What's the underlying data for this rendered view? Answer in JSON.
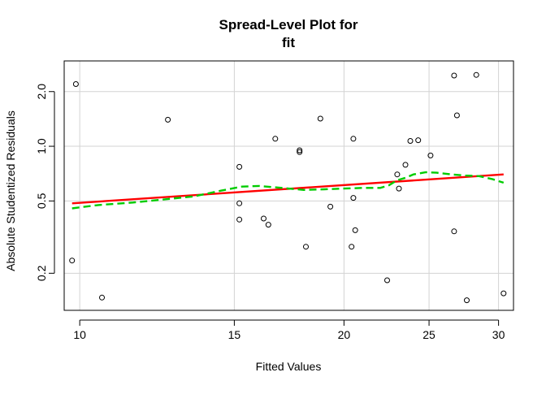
{
  "chart_data": {
    "type": "scatter",
    "title_lines": [
      "Spread-Level Plot for",
      "fit"
    ],
    "xlabel": "Fitted Values",
    "ylabel": "Absolute Studentized Residuals",
    "x_scale": "log",
    "y_scale": "log",
    "xlim": [
      9.6,
      31.2
    ],
    "ylim": [
      0.125,
      2.95
    ],
    "x_ticks": [
      10,
      15,
      20,
      25,
      30
    ],
    "x_tick_labels": [
      "10",
      "15",
      "20",
      "25",
      "30"
    ],
    "y_ticks": [
      0.2,
      0.5,
      1.0,
      2.0
    ],
    "y_tick_labels": [
      "0.2",
      "0.5",
      "1.0",
      "2.0"
    ],
    "grid": true,
    "points": [
      {
        "x": 9.8,
        "y": 0.235
      },
      {
        "x": 9.9,
        "y": 2.2
      },
      {
        "x": 10.6,
        "y": 0.147
      },
      {
        "x": 12.6,
        "y": 1.4
      },
      {
        "x": 15.2,
        "y": 0.77
      },
      {
        "x": 15.2,
        "y": 0.485
      },
      {
        "x": 15.2,
        "y": 0.395
      },
      {
        "x": 16.2,
        "y": 0.4
      },
      {
        "x": 16.4,
        "y": 0.37
      },
      {
        "x": 16.7,
        "y": 1.1
      },
      {
        "x": 17.8,
        "y": 0.93
      },
      {
        "x": 17.8,
        "y": 0.95
      },
      {
        "x": 18.1,
        "y": 0.28
      },
      {
        "x": 18.8,
        "y": 1.42
      },
      {
        "x": 19.3,
        "y": 0.465
      },
      {
        "x": 20.4,
        "y": 0.28
      },
      {
        "x": 20.5,
        "y": 0.52
      },
      {
        "x": 20.5,
        "y": 1.1
      },
      {
        "x": 20.6,
        "y": 0.345
      },
      {
        "x": 22.4,
        "y": 0.183
      },
      {
        "x": 23.0,
        "y": 0.7
      },
      {
        "x": 23.1,
        "y": 0.585
      },
      {
        "x": 23.5,
        "y": 0.79
      },
      {
        "x": 23.8,
        "y": 1.07
      },
      {
        "x": 24.3,
        "y": 1.08
      },
      {
        "x": 25.1,
        "y": 0.89
      },
      {
        "x": 26.7,
        "y": 2.45
      },
      {
        "x": 26.7,
        "y": 0.34
      },
      {
        "x": 26.9,
        "y": 1.48
      },
      {
        "x": 27.6,
        "y": 0.142
      },
      {
        "x": 28.3,
        "y": 2.47
      },
      {
        "x": 30.4,
        "y": 0.155
      }
    ],
    "series": [
      {
        "kind": "fit-line",
        "color": "#ff0000",
        "style": "solid",
        "x": [
          9.8,
          30.4
        ],
        "y": [
          0.485,
          0.7
        ]
      },
      {
        "kind": "smoother",
        "color": "#00cc00",
        "style": "dashed",
        "x": [
          9.8,
          10.5,
          11.5,
          12.5,
          13.5,
          14.5,
          15.3,
          16.0,
          17.0,
          18.0,
          19.0,
          20.0,
          21.0,
          22.0,
          22.5,
          23.0,
          23.5,
          24.0,
          24.8,
          25.5,
          26.5,
          27.5,
          28.5,
          29.5,
          30.4
        ],
        "y": [
          0.455,
          0.475,
          0.49,
          0.51,
          0.53,
          0.57,
          0.6,
          0.605,
          0.59,
          0.575,
          0.58,
          0.585,
          0.59,
          0.59,
          0.61,
          0.65,
          0.67,
          0.7,
          0.72,
          0.715,
          0.7,
          0.69,
          0.685,
          0.66,
          0.63
        ]
      }
    ]
  },
  "colors": {
    "grid": "#d3d3d3",
    "axis": "#000000",
    "fit_line": "#ff0000",
    "smoother": "#00cc00",
    "points": "#000000"
  }
}
